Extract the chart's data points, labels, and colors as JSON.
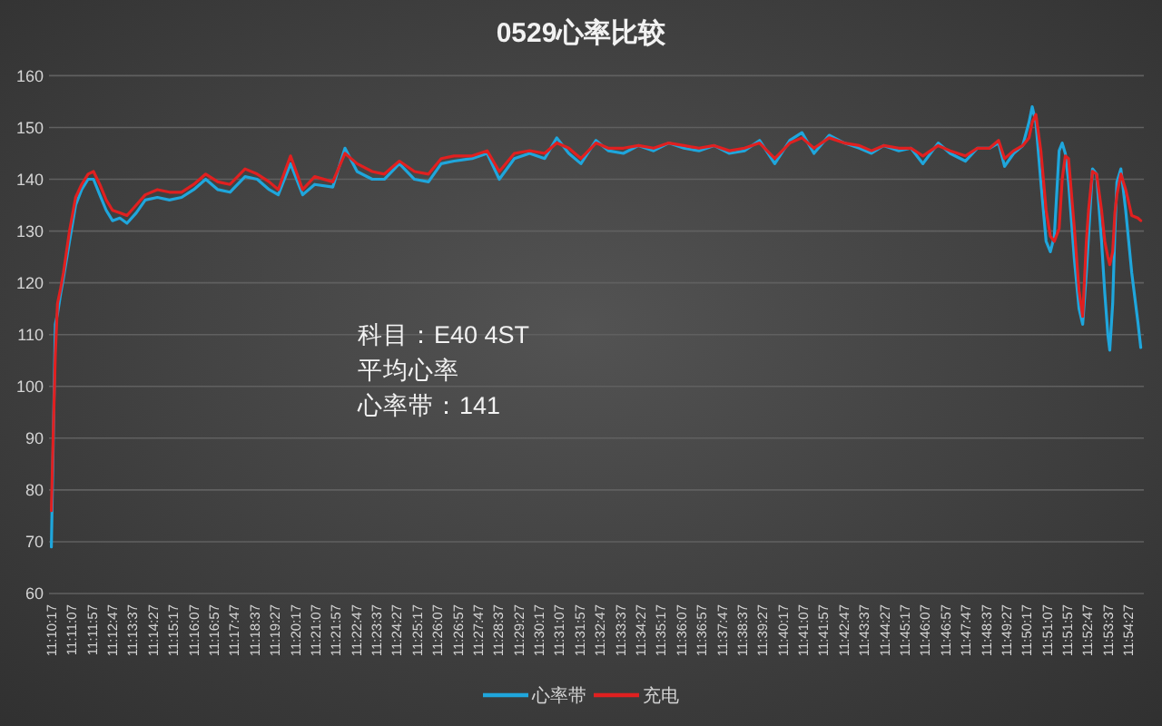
{
  "chart_data": {
    "type": "line",
    "title": "0529心率比较",
    "x": [
      11.1714,
      11.1726,
      11.1741,
      11.1756,
      11.1778,
      11.1797,
      11.1838,
      11.188,
      11.1921,
      11.1965,
      11.2002,
      11.2045,
      11.2089,
      11.2132,
      11.2182,
      11.2231,
      11.2294,
      11.2356,
      11.2439,
      11.2521,
      11.2604,
      11.2687,
      11.2769,
      11.2852,
      11.2935,
      11.3038,
      11.3121,
      11.3203,
      11.3265,
      11.3349,
      11.3432,
      11.3514,
      11.3638,
      11.3721,
      11.3804,
      11.3907,
      11.399,
      11.4093,
      11.4196,
      11.4292,
      11.4379,
      11.4466,
      11.459,
      11.4693,
      11.4776,
      11.4879,
      11.4983,
      11.5086,
      11.5169,
      11.5251,
      11.5334,
      11.5437,
      11.5521,
      11.5624,
      11.5728,
      11.5831,
      11.5934,
      11.6038,
      11.6141,
      11.6244,
      11.6349,
      11.6452,
      11.6555,
      11.6659,
      11.6762,
      11.6845,
      11.6927,
      11.7031,
      11.7134,
      11.7237,
      11.732,
      11.7404,
      11.7507,
      11.759,
      11.7672,
      11.7776,
      11.7858,
      11.7962,
      11.8044,
      11.8127,
      11.8189,
      11.823,
      11.8292,
      11.8354,
      11.8397,
      11.8419,
      11.8444,
      11.8478,
      11.8514,
      11.8543,
      11.857,
      11.8603,
      11.8624,
      11.8645,
      11.8667,
      11.8707,
      11.8739,
      11.8764,
      11.8789,
      11.8804,
      11.8831,
      11.8859,
      11.8893,
      11.8915,
      11.8936,
      11.8949,
      11.8969,
      11.8984,
      11.8998,
      11.9025,
      11.9058,
      11.9099,
      11.9141,
      11.9161
    ],
    "xlim": [
      11.1698,
      11.9182
    ],
    "xticks": [
      {
        "value": 11.171389,
        "label": "11:10:17"
      },
      {
        "value": 11.185278,
        "label": "11:11:07"
      },
      {
        "value": 11.199167,
        "label": "11:11:57"
      },
      {
        "value": 11.213056,
        "label": "11:12:47"
      },
      {
        "value": 11.226944,
        "label": "11:13:37"
      },
      {
        "value": 11.240833,
        "label": "11:14:27"
      },
      {
        "value": 11.254722,
        "label": "11:15:17"
      },
      {
        "value": 11.268611,
        "label": "11:16:07"
      },
      {
        "value": 11.2825,
        "label": "11:16:57"
      },
      {
        "value": 11.296389,
        "label": "11:17:47"
      },
      {
        "value": 11.310278,
        "label": "11:18:37"
      },
      {
        "value": 11.324167,
        "label": "11:19:27"
      },
      {
        "value": 11.338056,
        "label": "11:20:17"
      },
      {
        "value": 11.351944,
        "label": "11:21:07"
      },
      {
        "value": 11.365833,
        "label": "11:21:57"
      },
      {
        "value": 11.379722,
        "label": "11:22:47"
      },
      {
        "value": 11.393611,
        "label": "11:23:37"
      },
      {
        "value": 11.4075,
        "label": "11:24:27"
      },
      {
        "value": 11.421389,
        "label": "11:25:17"
      },
      {
        "value": 11.435278,
        "label": "11:26:07"
      },
      {
        "value": 11.449167,
        "label": "11:26:57"
      },
      {
        "value": 11.463056,
        "label": "11:27:47"
      },
      {
        "value": 11.476944,
        "label": "11:28:37"
      },
      {
        "value": 11.490833,
        "label": "11:29:27"
      },
      {
        "value": 11.504722,
        "label": "11:30:17"
      },
      {
        "value": 11.518611,
        "label": "11:31:07"
      },
      {
        "value": 11.5325,
        "label": "11:31:57"
      },
      {
        "value": 11.546389,
        "label": "11:32:47"
      },
      {
        "value": 11.560278,
        "label": "11:33:37"
      },
      {
        "value": 11.574167,
        "label": "11:34:27"
      },
      {
        "value": 11.588056,
        "label": "11:35:17"
      },
      {
        "value": 11.601944,
        "label": "11:36:07"
      },
      {
        "value": 11.615833,
        "label": "11:36:57"
      },
      {
        "value": 11.629722,
        "label": "11:37:47"
      },
      {
        "value": 11.643611,
        "label": "11:38:37"
      },
      {
        "value": 11.6575,
        "label": "11:39:27"
      },
      {
        "value": 11.671389,
        "label": "11:40:17"
      },
      {
        "value": 11.685278,
        "label": "11:41:07"
      },
      {
        "value": 11.699167,
        "label": "11:41:57"
      },
      {
        "value": 11.713056,
        "label": "11:42:47"
      },
      {
        "value": 11.726944,
        "label": "11:43:37"
      },
      {
        "value": 11.740833,
        "label": "11:44:27"
      },
      {
        "value": 11.754722,
        "label": "11:45:17"
      },
      {
        "value": 11.768611,
        "label": "11:46:07"
      },
      {
        "value": 11.7825,
        "label": "11:46:57"
      },
      {
        "value": 11.796389,
        "label": "11:47:47"
      },
      {
        "value": 11.810278,
        "label": "11:48:37"
      },
      {
        "value": 11.824167,
        "label": "11:49:27"
      },
      {
        "value": 11.838056,
        "label": "11:50:17"
      },
      {
        "value": 11.851944,
        "label": "11:51:07"
      },
      {
        "value": 11.865833,
        "label": "11:51:57"
      },
      {
        "value": 11.879722,
        "label": "11:52:47"
      },
      {
        "value": 11.893611,
        "label": "11:53:37"
      },
      {
        "value": 11.9075,
        "label": "11:54:27"
      }
    ],
    "ylim": [
      60,
      160
    ],
    "yticks": [
      60,
      70,
      80,
      90,
      100,
      110,
      120,
      130,
      140,
      150,
      160
    ],
    "grid": "y",
    "legend": "bottom",
    "series": [
      {
        "name": "心率带",
        "color": "#1fa6dc",
        "values": [
          69,
          88,
          112,
          114,
          118,
          121,
          128,
          135,
          138,
          140,
          140,
          137,
          134,
          132,
          132.5,
          131.5,
          133.5,
          136,
          136.5,
          136,
          136.5,
          138,
          140,
          138,
          137.5,
          140.5,
          140,
          138,
          137,
          143,
          137,
          139,
          138.5,
          146,
          141.5,
          140,
          140,
          143,
          140,
          139.5,
          143,
          143.5,
          144,
          145,
          140,
          144,
          145,
          144,
          148,
          145,
          143,
          147.5,
          145.5,
          145,
          146.5,
          145.5,
          147,
          146,
          145.5,
          146.5,
          145,
          145.5,
          147.5,
          143,
          147.5,
          149,
          145,
          148.5,
          147,
          146,
          145,
          146.5,
          145.5,
          146,
          143,
          147,
          145,
          143.5,
          146,
          146,
          147,
          142.5,
          145,
          146.5,
          151,
          154,
          151,
          139.5,
          128,
          126,
          129,
          145.5,
          147,
          145,
          139.5,
          124.5,
          115,
          112,
          122,
          129,
          142,
          141,
          128,
          118,
          110,
          107,
          116,
          130,
          139.5,
          142,
          134,
          122,
          112.5,
          107.5
        ]
      },
      {
        "name": "充电",
        "color": "#e02020",
        "values": [
          76,
          90,
          106,
          116,
          119,
          122,
          130,
          136.5,
          139,
          141,
          141.5,
          139,
          136,
          134,
          133.5,
          133,
          135,
          137,
          138,
          137.5,
          137.5,
          139,
          141,
          139.5,
          139,
          142,
          141,
          139.5,
          138,
          144.5,
          138,
          140.5,
          139.5,
          145,
          143,
          141.5,
          141,
          143.5,
          141.5,
          141,
          144,
          144.5,
          144.5,
          145.5,
          141.5,
          145,
          145.5,
          145,
          147,
          146,
          144,
          147,
          146,
          146,
          146.5,
          146,
          147,
          146.5,
          146,
          146.5,
          145.5,
          146,
          147,
          144,
          147,
          148,
          146,
          148,
          147,
          146.5,
          145.5,
          146.5,
          146,
          146,
          144.5,
          146.5,
          145.5,
          144.5,
          146,
          146,
          147.5,
          144,
          145.5,
          146.5,
          148,
          151,
          152.5,
          145.5,
          134,
          129,
          128,
          130.5,
          140,
          144.5,
          144,
          130.5,
          118.5,
          113.5,
          128,
          134,
          141.5,
          141,
          134,
          128,
          125,
          123.5,
          126,
          133.5,
          137,
          141,
          138,
          133,
          132.5,
          132
        ]
      }
    ],
    "annotations": [
      "科目：E40 4ST",
      "平均心率",
      "心率带：141"
    ]
  }
}
